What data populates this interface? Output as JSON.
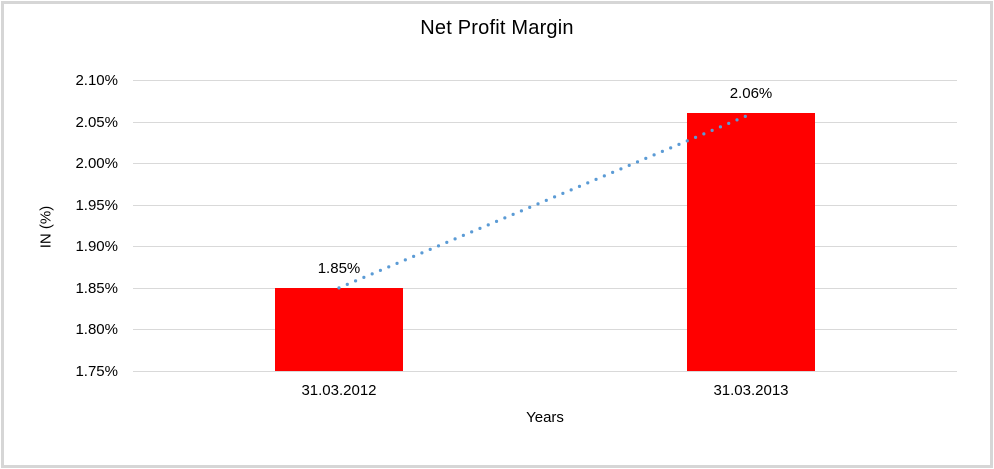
{
  "chart_data": {
    "type": "bar",
    "title": "Net Profit Margin",
    "xlabel": "Years",
    "ylabel": "IN (%)",
    "categories": [
      "31.03.2012",
      "31.03.2013"
    ],
    "values": [
      1.85,
      2.06
    ],
    "data_labels": [
      "1.85%",
      "2.06%"
    ],
    "y_ticks": [
      "2.10%",
      "2.05%",
      "2.00%",
      "1.95%",
      "1.90%",
      "1.85%",
      "1.80%",
      "1.75%"
    ],
    "ylim": [
      1.75,
      2.1
    ],
    "y_tick_step": 0.05,
    "grid": true,
    "legend": "none",
    "bar_color": "#FF0000",
    "trendline": {
      "type": "linear",
      "style": "dotted",
      "color": "#5B9BD5",
      "from_value": 1.85,
      "to_value": 2.06
    }
  },
  "colors": {
    "background": "#FFFFFF",
    "frame_border": "#D6D6D6",
    "gridline": "#D9D9D9",
    "text": "#000000"
  }
}
